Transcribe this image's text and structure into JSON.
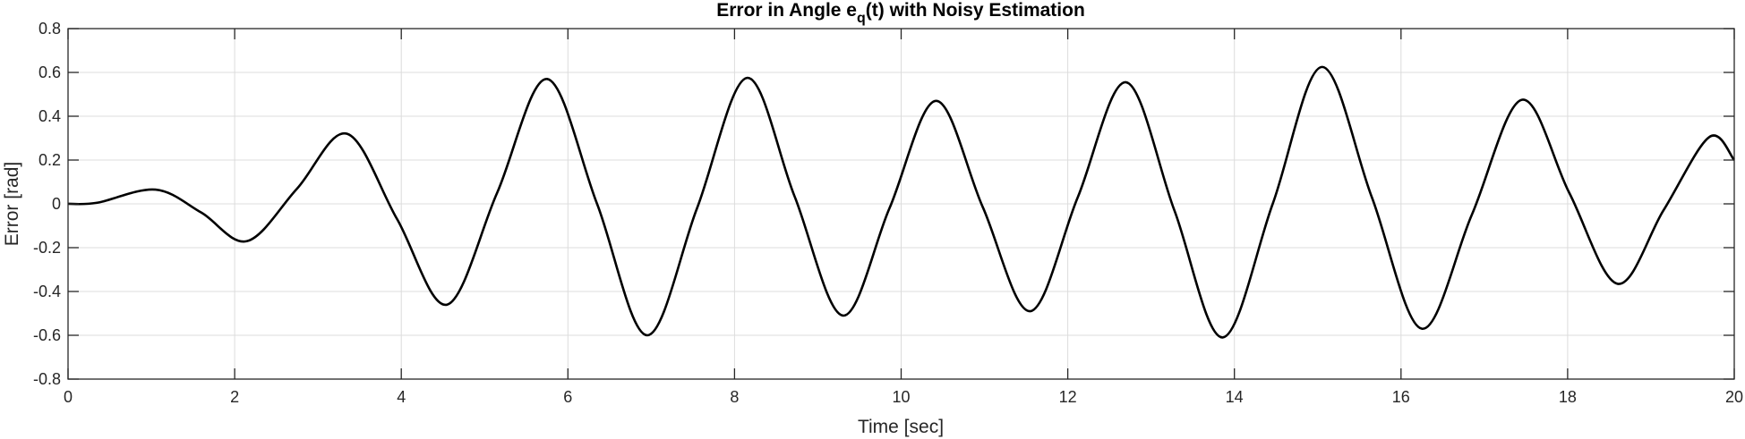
{
  "chart_data": {
    "type": "line",
    "title": {
      "prefix": "Error in Angle e",
      "subscript": "q",
      "suffix": "(t) with Noisy Estimation"
    },
    "xlabel": "Time [sec]",
    "ylabel": "Error [rad]",
    "xlim": [
      0,
      20
    ],
    "ylim": [
      -0.8,
      0.8
    ],
    "xticks": [
      0,
      2,
      4,
      6,
      8,
      10,
      12,
      14,
      16,
      18,
      20
    ],
    "xtick_labels": [
      "0",
      "2",
      "4",
      "6",
      "8",
      "10",
      "12",
      "14",
      "16",
      "18",
      "20"
    ],
    "yticks": [
      -0.8,
      -0.6,
      -0.4,
      -0.2,
      0,
      0.2,
      0.4,
      0.6,
      0.8
    ],
    "ytick_labels": [
      "-0.8",
      "-0.6",
      "-0.4",
      "-0.2",
      "0",
      "0.2",
      "0.4",
      "0.6",
      "0.8"
    ],
    "grid": true,
    "series_color": "#000000",
    "series": [
      {
        "x": [
          0,
          0.35,
          1.05,
          1.6,
          2.15,
          2.75,
          3.35,
          3.95,
          4.55,
          5.15,
          5.75,
          6.35,
          6.95,
          7.55,
          8.15,
          8.72,
          9.3,
          9.86,
          10.42,
          10.98,
          11.55,
          12.12,
          12.7,
          13.28,
          13.86,
          14.46,
          15.05,
          15.65,
          16.25,
          16.85,
          17.45,
          18.02,
          18.6,
          19.15,
          19.7,
          20
        ],
        "y": [
          0,
          0.005,
          0.065,
          -0.04,
          -0.17,
          0.07,
          0.32,
          -0.07,
          -0.46,
          0.05,
          0.57,
          0.0,
          -0.6,
          -0.02,
          0.575,
          0.035,
          -0.51,
          -0.02,
          0.47,
          -0.015,
          -0.49,
          0.03,
          0.555,
          -0.03,
          -0.61,
          0.0,
          0.625,
          0.03,
          -0.57,
          -0.05,
          0.475,
          0.05,
          -0.365,
          -0.03,
          0.305,
          0.2
        ]
      }
    ]
  }
}
